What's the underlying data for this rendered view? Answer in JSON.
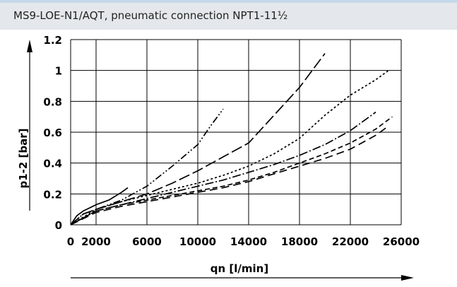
{
  "header": {
    "title": "MS9-LOE-N1/AQT, pneumatic connection NPT1-11½"
  },
  "chart_data": {
    "type": "line",
    "title": "MS9-LOE-N1/AQT, pneumatic connection NPT1-11½",
    "xlabel": "qn [l/min]",
    "ylabel": "p1-2 [bar]",
    "xlim": [
      0,
      26000
    ],
    "ylim": [
      0,
      1.2
    ],
    "xticks": [
      "0",
      "2000",
      "6000",
      "10000",
      "14000",
      "18000",
      "22000",
      "26000"
    ],
    "yticks": [
      "0",
      "0.2",
      "0.4",
      "0.6",
      "0.8",
      "1",
      "1.2"
    ],
    "grid": true,
    "legend": "none",
    "series": [
      {
        "dash": "solid",
        "x": [
          0,
          500,
          1000,
          2000,
          3000,
          4000,
          4500
        ],
        "y": [
          0,
          0.06,
          0.09,
          0.13,
          0.16,
          0.21,
          0.24
        ]
      },
      {
        "dash": "dashdotdot",
        "x": [
          0,
          1000,
          2000,
          4000,
          6000,
          8000,
          10000,
          11000,
          12000
        ],
        "y": [
          0,
          0.07,
          0.1,
          0.16,
          0.25,
          0.38,
          0.52,
          0.64,
          0.75
        ]
      },
      {
        "dash": "longdash",
        "x": [
          0,
          1000,
          2000,
          4000,
          6000,
          8000,
          10000,
          12000,
          14000,
          16000,
          18000,
          19000,
          20000
        ],
        "y": [
          0,
          0.07,
          0.1,
          0.15,
          0.2,
          0.27,
          0.35,
          0.44,
          0.53,
          0.71,
          0.89,
          1.0,
          1.11
        ]
      },
      {
        "dash": "dotted",
        "x": [
          0,
          2000,
          4000,
          6000,
          8000,
          10000,
          12000,
          14000,
          16000,
          18000,
          20000,
          22000,
          24000,
          25000
        ],
        "y": [
          0,
          0.1,
          0.15,
          0.19,
          0.23,
          0.27,
          0.32,
          0.38,
          0.46,
          0.56,
          0.71,
          0.84,
          0.94,
          1.0
        ]
      },
      {
        "dash": "dashdot",
        "x": [
          0,
          2000,
          4000,
          6000,
          8000,
          10000,
          12000,
          14000,
          16000,
          18000,
          20000,
          22000,
          24000
        ],
        "y": [
          0,
          0.09,
          0.13,
          0.17,
          0.21,
          0.25,
          0.29,
          0.34,
          0.39,
          0.45,
          0.52,
          0.61,
          0.73
        ]
      },
      {
        "dash": "dashed",
        "x": [
          0,
          2000,
          4000,
          6000,
          8000,
          10000,
          12000,
          14000,
          16000,
          18000,
          20000,
          22000,
          24000,
          25300
        ],
        "y": [
          0,
          0.09,
          0.13,
          0.16,
          0.19,
          0.22,
          0.25,
          0.29,
          0.34,
          0.4,
          0.46,
          0.53,
          0.62,
          0.7
        ]
      },
      {
        "dash": "longdash2",
        "x": [
          0,
          2000,
          4000,
          6000,
          8000,
          10000,
          12000,
          14000,
          16000,
          18000,
          20000,
          22000,
          24000,
          25000
        ],
        "y": [
          0,
          0.08,
          0.12,
          0.15,
          0.18,
          0.21,
          0.24,
          0.28,
          0.33,
          0.38,
          0.43,
          0.49,
          0.58,
          0.64
        ]
      }
    ]
  }
}
